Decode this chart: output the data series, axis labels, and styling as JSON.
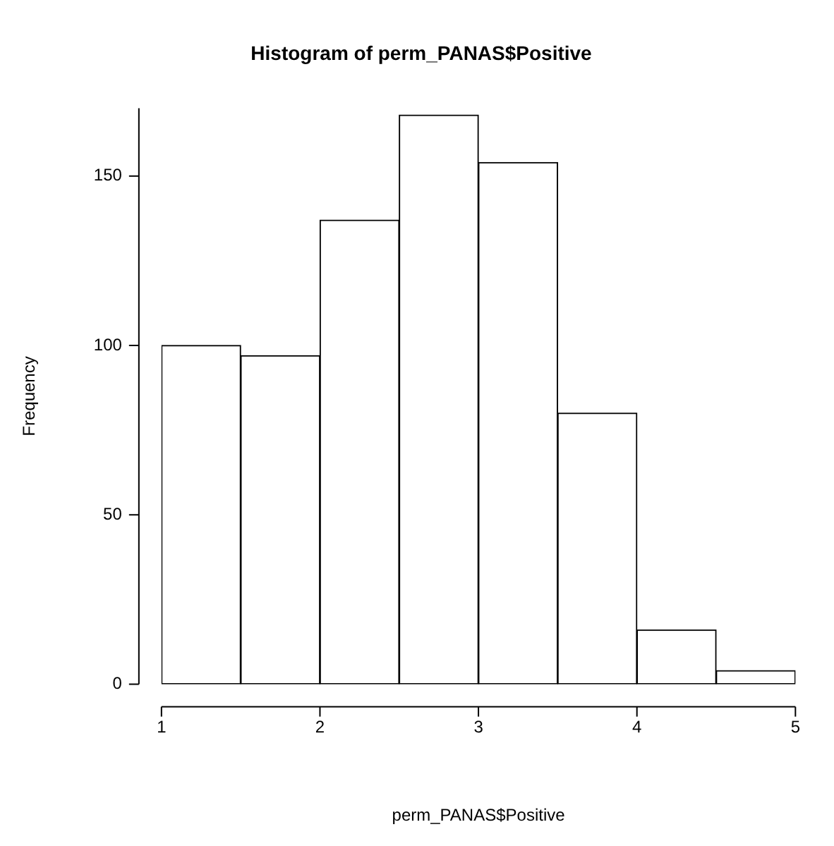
{
  "chart_data": {
    "type": "histogram",
    "title": "Histogram of perm_PANAS$Positive",
    "xlabel": "perm_PANAS$Positive",
    "ylabel": "Frequency",
    "bins": [
      1,
      1.5,
      2,
      2.5,
      3,
      3.5,
      4,
      4.5,
      5
    ],
    "values": [
      100,
      97,
      137,
      168,
      154,
      80,
      16,
      4
    ],
    "color": "#ffffff",
    "xlim": [
      1,
      5
    ],
    "xticks": [
      1,
      2,
      3,
      4,
      5
    ],
    "ylim": [
      0,
      170
    ],
    "yticks": [
      0,
      50,
      100,
      150
    ],
    "grid": false,
    "legend": false
  }
}
